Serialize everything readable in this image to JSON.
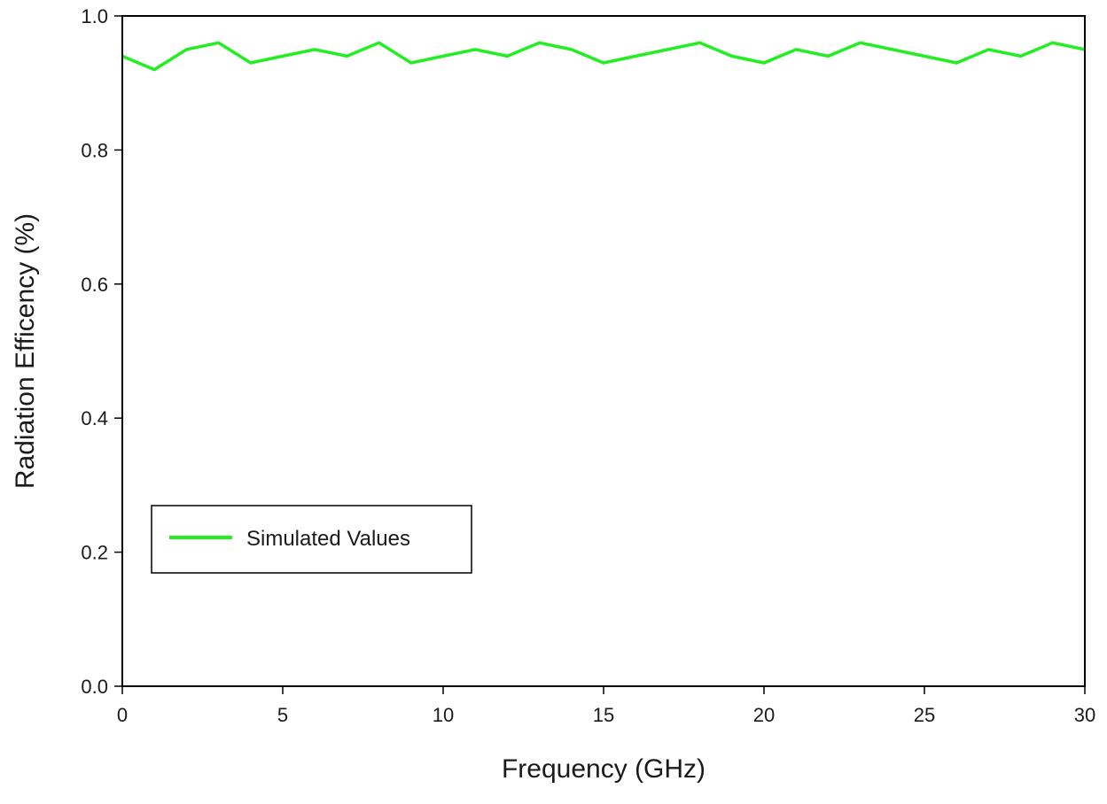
{
  "chart_data": {
    "type": "line",
    "title": "",
    "xlabel": "Frequency (GHz)",
    "ylabel": "Radiation Efficency (%)",
    "xlim": [
      0,
      30
    ],
    "ylim": [
      0.0,
      1.0
    ],
    "xticks": [
      0,
      5,
      10,
      15,
      20,
      25,
      30
    ],
    "xtick_labels": [
      "0",
      "5",
      "10",
      "15",
      "20",
      "25",
      "30"
    ],
    "yticks": [
      0.0,
      0.2,
      0.4,
      0.6,
      0.8,
      1.0
    ],
    "ytick_labels": [
      "0.0",
      "0.2",
      "0.4",
      "0.6",
      "0.8",
      "1.0"
    ],
    "grid": false,
    "legend_position": "lower-left",
    "series": [
      {
        "name": "Simulated Values",
        "color": "#22ee22",
        "x": [
          0,
          1,
          2,
          3,
          4,
          5,
          6,
          7,
          8,
          9,
          10,
          11,
          12,
          13,
          14,
          15,
          16,
          17,
          18,
          19,
          20,
          21,
          22,
          23,
          24,
          25,
          26,
          27,
          28,
          29,
          30
        ],
        "y": [
          0.94,
          0.92,
          0.95,
          0.96,
          0.93,
          0.94,
          0.95,
          0.94,
          0.96,
          0.93,
          0.94,
          0.95,
          0.94,
          0.96,
          0.95,
          0.93,
          0.94,
          0.95,
          0.96,
          0.94,
          0.93,
          0.95,
          0.94,
          0.96,
          0.95,
          0.94,
          0.93,
          0.95,
          0.94,
          0.96,
          0.95
        ]
      }
    ]
  }
}
